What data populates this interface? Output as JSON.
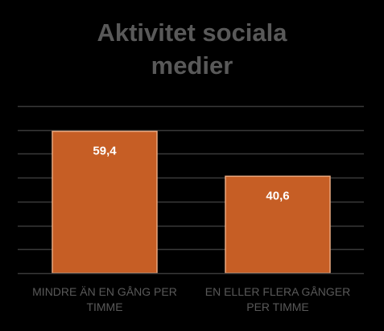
{
  "chart_data": {
    "type": "bar",
    "title": "Aktivitet sociala medier",
    "title_lines": [
      "Aktivitet sociala",
      "medier"
    ],
    "categories": [
      "MINDRE ÄN EN GÅNG PER TIMME",
      "EN ELLER FLERA GÅNGER PER TIMME"
    ],
    "category_lines": [
      [
        "MINDRE ÄN EN GÅNG PER",
        "TIMME"
      ],
      [
        "EN ELLER FLERA GÅNGER",
        "PER TIMME"
      ]
    ],
    "values": [
      59.4,
      40.6
    ],
    "data_labels": [
      "59,4",
      "40,6"
    ],
    "xlabel": "",
    "ylabel": "",
    "ylim": [
      0,
      70
    ],
    "grid": true,
    "legend": "none"
  },
  "colors": {
    "background": "#000000",
    "bar_fill": "#C65E25",
    "bar_stroke": "#E8A77F",
    "gridline": "#3A3A3A",
    "text": "#595959",
    "data_label": "#FFFFFF"
  }
}
